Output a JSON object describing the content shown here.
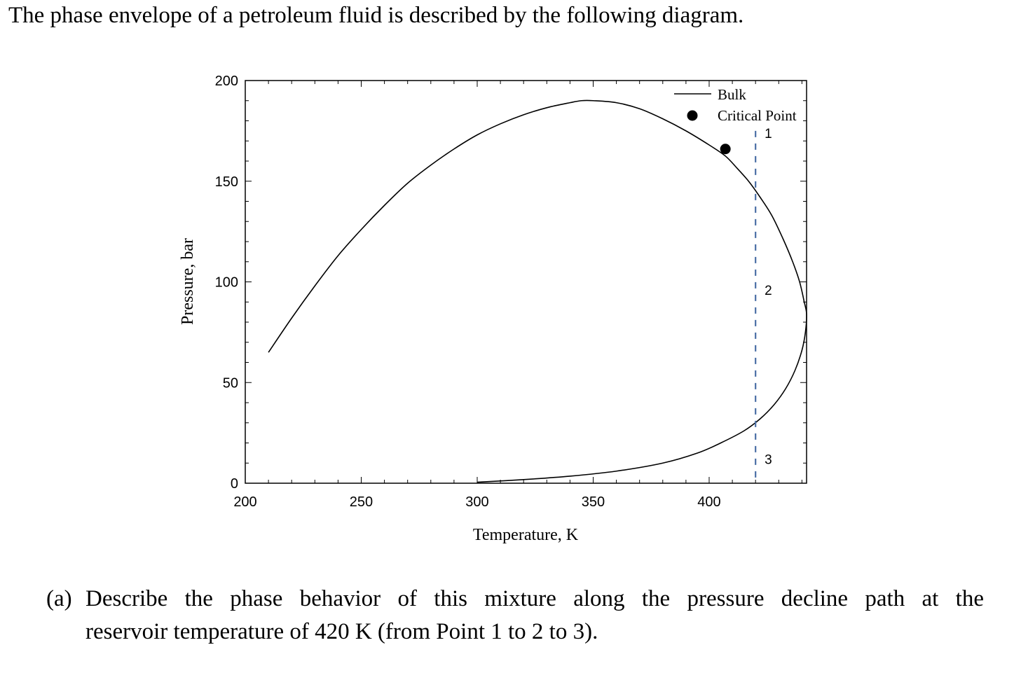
{
  "intro_text": "The phase envelope of a petroleum fluid is described by the following diagram.",
  "question": {
    "prefix": "(a)",
    "line1": "Describe the phase behavior of this mixture along the pressure decline path at the",
    "line2": "reservoir temperature of 420 K (from Point 1 to 2 to 3)."
  },
  "chart_data": {
    "type": "line",
    "xlabel": "Temperature, K",
    "ylabel": "Pressure, bar",
    "xlim": [
      200,
      442
    ],
    "ylim": [
      0,
      200
    ],
    "xticks": [
      200,
      250,
      300,
      350,
      400
    ],
    "yticks": [
      0,
      50,
      100,
      150,
      200
    ],
    "grid": false,
    "legend_position": "top-right",
    "legend": [
      {
        "label": "Bulk",
        "marker": "line"
      },
      {
        "label": "Critical Point",
        "marker": "filled-circle"
      }
    ],
    "series": [
      {
        "name": "Bulk",
        "x": [
          210,
          220,
          230,
          240,
          250,
          260,
          270,
          280,
          290,
          300,
          310,
          320,
          330,
          340,
          345,
          350,
          360,
          370,
          380,
          390,
          400,
          407,
          412,
          417,
          422,
          427,
          432,
          436,
          439,
          441,
          442,
          441.5,
          440,
          437,
          433,
          428,
          422,
          415,
          405,
          395,
          380,
          360,
          340,
          320,
          300
        ],
        "y": [
          65,
          82,
          98,
          113,
          126,
          138,
          149,
          158,
          166,
          173,
          178.5,
          183,
          186.5,
          189,
          190,
          190,
          189,
          186,
          181,
          175,
          168,
          162.5,
          156.5,
          150,
          142,
          133,
          121,
          110,
          100,
          90,
          84,
          75,
          66,
          56,
          47,
          39,
          32,
          26,
          20,
          15,
          10,
          6,
          3.5,
          1.8,
          0.5
        ]
      },
      {
        "name": "Critical Point",
        "x": [
          407
        ],
        "y": [
          166
        ]
      }
    ],
    "path": {
      "temperature": 420,
      "y_range": [
        0,
        175
      ],
      "color": "#4a6fa5",
      "points": [
        {
          "label": "1",
          "x": 420,
          "y": 174
        },
        {
          "label": "2",
          "x": 420,
          "y": 96
        },
        {
          "label": "3",
          "x": 420,
          "y": 12
        }
      ]
    }
  }
}
